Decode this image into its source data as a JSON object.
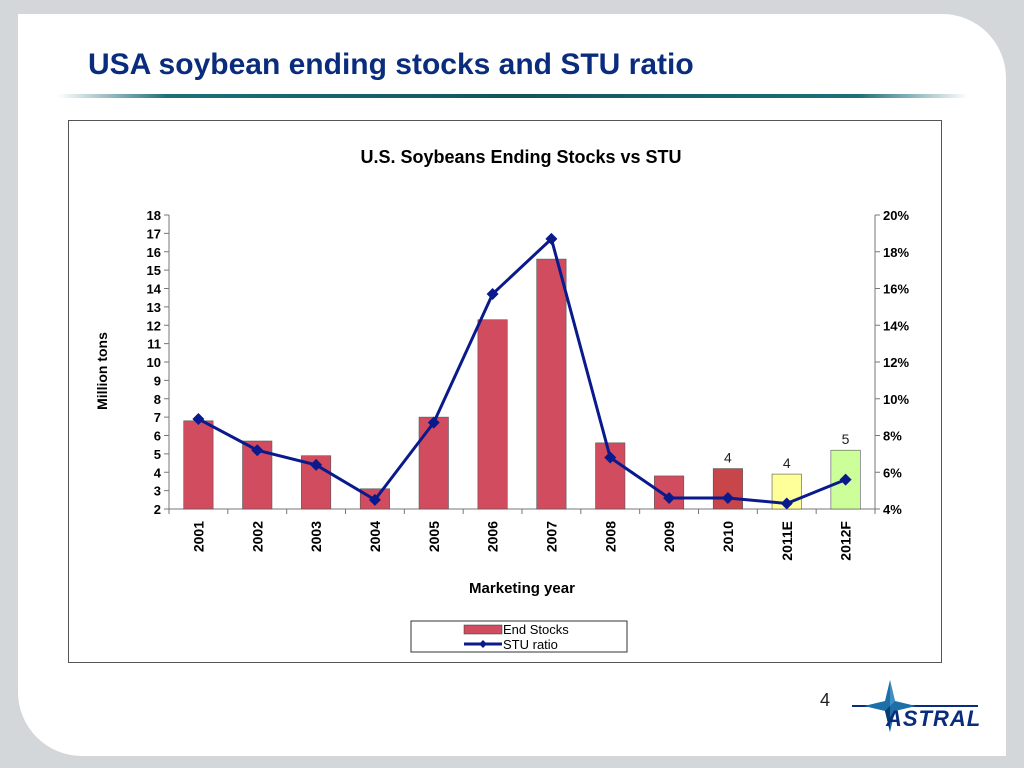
{
  "slide": {
    "title": "USA soybean ending stocks and STU ratio",
    "page_number": "4",
    "logo_text": "ASTRAL"
  },
  "colors": {
    "title": "#0a2c7c",
    "bar": "#d24c5f",
    "bar_2010": "#c8454a",
    "bar_2011E": "#ffff99",
    "bar_2012F": "#ccff99",
    "line": "#0a1a8c"
  },
  "chart_data": {
    "type": "bar",
    "title": "U.S. Soybeans Ending Stocks vs STU",
    "xlabel": "Marketing year",
    "ylabel": "Million tons",
    "categories": [
      "2001",
      "2002",
      "2003",
      "2004",
      "2005",
      "2006",
      "2007",
      "2008",
      "2009",
      "2010",
      "2011E",
      "2012F"
    ],
    "ylim": [
      2,
      18
    ],
    "y_ticks": [
      "2",
      "3",
      "4",
      "5",
      "6",
      "7",
      "8",
      "9",
      "10",
      "11",
      "12",
      "13",
      "14",
      "15",
      "16",
      "17",
      "18"
    ],
    "y2lim": [
      0.04,
      0.2
    ],
    "y2_ticks": [
      "4%",
      "6%",
      "8%",
      "10%",
      "12%",
      "14%",
      "16%",
      "18%",
      "20%"
    ],
    "series": [
      {
        "name": "End Stocks",
        "type": "bar",
        "axis": "left",
        "values": [
          6.8,
          5.7,
          4.9,
          3.1,
          7.0,
          12.3,
          15.6,
          5.6,
          3.8,
          4.2,
          3.9,
          5.2
        ],
        "data_labels": [
          "",
          "",
          "",
          "",
          "",
          "",
          "",
          "",
          "",
          "4",
          "4",
          "5"
        ]
      },
      {
        "name": "STU ratio",
        "type": "line",
        "axis": "right",
        "marker": "diamond",
        "values": [
          0.089,
          0.072,
          0.064,
          0.045,
          0.087,
          0.157,
          0.187,
          0.068,
          0.046,
          0.046,
          0.043,
          0.056
        ]
      }
    ],
    "grid": false,
    "legend": "bottom"
  }
}
